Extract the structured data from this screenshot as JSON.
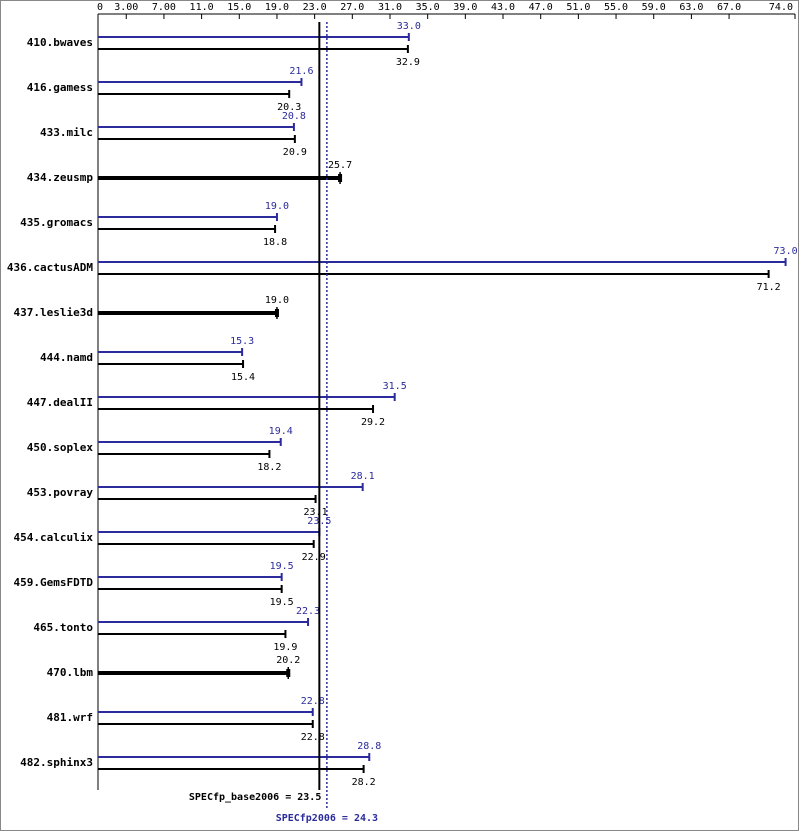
{
  "chart_data": {
    "type": "bar",
    "orientation": "horizontal",
    "categories": [
      "410.bwaves",
      "416.gamess",
      "433.milc",
      "434.zeusmp",
      "435.gromacs",
      "436.cactusADM",
      "437.leslie3d",
      "444.namd",
      "447.dealII",
      "450.soplex",
      "453.povray",
      "454.calculix",
      "459.GemsFDTD",
      "465.tonto",
      "470.lbm",
      "481.wrf",
      "482.sphinx3"
    ],
    "series": [
      {
        "color": "#2b2b9c",
        "values": [
          33.0,
          21.6,
          20.8,
          null,
          19.0,
          73.0,
          null,
          15.3,
          31.5,
          19.4,
          28.1,
          23.5,
          19.5,
          22.3,
          null,
          22.8,
          28.8
        ],
        "value_labels": [
          "33.0",
          "21.6",
          "20.8",
          null,
          "19.0",
          "73.0",
          null,
          "15.3",
          "31.5",
          "19.4",
          "28.1",
          "23.5",
          "19.5",
          "22.3",
          null,
          "22.8",
          "28.8"
        ]
      },
      {
        "color": "#000000",
        "values": [
          32.9,
          20.3,
          20.9,
          25.7,
          18.8,
          71.2,
          19.0,
          15.4,
          29.2,
          18.2,
          23.1,
          22.9,
          19.5,
          19.9,
          20.2,
          22.8,
          28.2
        ],
        "value_labels": [
          "32.9",
          "20.3",
          "20.9",
          "25.7",
          "18.8",
          "71.2",
          "19.0",
          "15.4",
          "29.2",
          "18.2",
          "23.1",
          "22.9",
          "19.5",
          "19.9",
          "20.2",
          "22.8",
          "28.2"
        ]
      }
    ],
    "xlim": [
      0,
      74
    ],
    "xticks": [
      0,
      {
        "value": 3,
        "label": "3.00"
      },
      {
        "value": 7,
        "label": "7.00"
      },
      {
        "value": 11,
        "label": "11.0"
      },
      {
        "value": 15,
        "label": "15.0"
      },
      {
        "value": 19,
        "label": "19.0"
      },
      {
        "value": 23,
        "label": "23.0"
      },
      {
        "value": 27,
        "label": "27.0"
      },
      {
        "value": 31,
        "label": "31.0"
      },
      {
        "value": 35,
        "label": "35.0"
      },
      {
        "value": 39,
        "label": "39.0"
      },
      {
        "value": 43,
        "label": "43.0"
      },
      {
        "value": 47,
        "label": "47.0"
      },
      {
        "value": 51,
        "label": "51.0"
      },
      {
        "value": 55,
        "label": "55.0"
      },
      {
        "value": 59,
        "label": "59.0"
      },
      {
        "value": 63,
        "label": "63.0"
      },
      {
        "value": 67,
        "label": "67.0"
      },
      {
        "value": 74,
        "label": "74.0"
      }
    ],
    "reference_lines": [
      {
        "value": 23.5,
        "label": "SPECfp_base2006 = 23.5",
        "color": "#000000",
        "style": "solid"
      },
      {
        "value": 24.3,
        "label": "SPECfp2006 = 24.3",
        "color": "#2b2b9c",
        "style": "dotted"
      }
    ]
  }
}
